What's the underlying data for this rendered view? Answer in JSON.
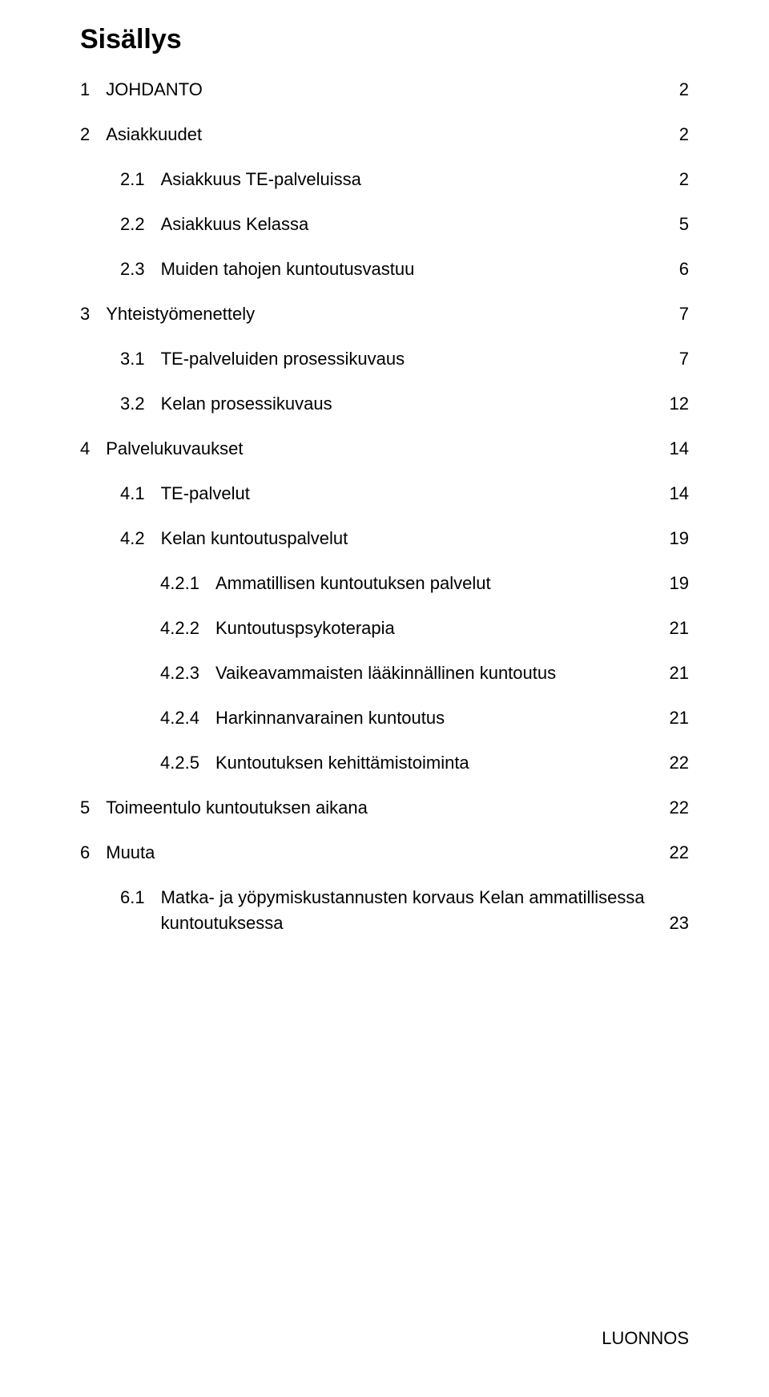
{
  "title": "Sisällys",
  "footer": "LUONNOS",
  "toc": [
    {
      "num": "1",
      "label": "JOHDANTO",
      "page": "2",
      "indent": 0,
      "spaced": true,
      "multi": false
    },
    {
      "num": "2",
      "label": "Asiakkuudet",
      "page": "2",
      "indent": 0,
      "spaced": true,
      "multi": false
    },
    {
      "num": "2.1",
      "label": "Asiakkuus TE-palveluissa",
      "page": "2",
      "indent": 1,
      "spaced": true,
      "multi": false
    },
    {
      "num": "2.2",
      "label": "Asiakkuus Kelassa",
      "page": "5",
      "indent": 1,
      "spaced": true,
      "multi": false
    },
    {
      "num": "2.3",
      "label": "Muiden tahojen kuntoutusvastuu",
      "page": "6",
      "indent": 1,
      "spaced": true,
      "multi": false
    },
    {
      "num": "3",
      "label": "Yhteistyömenettely",
      "page": "7",
      "indent": 0,
      "spaced": true,
      "multi": false
    },
    {
      "num": "3.1",
      "label": "TE-palveluiden prosessikuvaus",
      "page": "7",
      "indent": 1,
      "spaced": true,
      "multi": false
    },
    {
      "num": "3.2",
      "label": "Kelan prosessikuvaus",
      "page": "12",
      "indent": 1,
      "spaced": true,
      "multi": false
    },
    {
      "num": "4",
      "label": "Palvelukuvaukset",
      "page": "14",
      "indent": 0,
      "spaced": true,
      "multi": false
    },
    {
      "num": "4.1",
      "label": "TE-palvelut",
      "page": "14",
      "indent": 1,
      "spaced": true,
      "multi": false
    },
    {
      "num": "4.2",
      "label": "Kelan kuntoutuspalvelut",
      "page": "19",
      "indent": 1,
      "spaced": true,
      "multi": false
    },
    {
      "num": "4.2.1",
      "label": "Ammatillisen kuntoutuksen palvelut",
      "page": "19",
      "indent": 2,
      "spaced": true,
      "multi": false
    },
    {
      "num": "4.2.2",
      "label": "Kuntoutuspsykoterapia",
      "page": "21",
      "indent": 2,
      "spaced": true,
      "multi": false
    },
    {
      "num": "4.2.3",
      "label": "Vaikeavammaisten lääkinnällinen kuntoutus",
      "page": "21",
      "indent": 2,
      "spaced": true,
      "multi": false
    },
    {
      "num": "4.2.4",
      "label": "Harkinnanvarainen kuntoutus",
      "page": "21",
      "indent": 2,
      "spaced": true,
      "multi": false
    },
    {
      "num": "4.2.5",
      "label": "Kuntoutuksen kehittämistoiminta",
      "page": "22",
      "indent": 2,
      "spaced": true,
      "multi": false
    },
    {
      "num": "5",
      "label": "Toimeentulo kuntoutuksen aikana",
      "page": "22",
      "indent": 0,
      "spaced": true,
      "multi": false
    },
    {
      "num": "6",
      "label": "Muuta",
      "page": "22",
      "indent": 0,
      "spaced": true,
      "multi": false
    },
    {
      "num": "6.1",
      "label": "Matka- ja yöpymiskustannusten korvaus Kelan ammatillisessa",
      "label2": "kuntoutuksessa",
      "page": "23",
      "indent": 1,
      "spaced": true,
      "multi": true
    }
  ]
}
